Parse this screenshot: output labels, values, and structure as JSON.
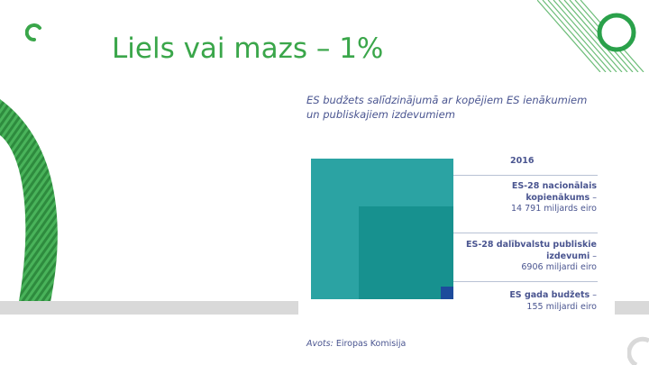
{
  "slide": {
    "title": "Liels vai mazs – 1%"
  },
  "figure": {
    "heading_line1": "ES budžets salīdzinājumā ar kopējiem ES ienākumiem",
    "heading_line2": "un publiskajiem izdevumiem",
    "year": "2016",
    "items": [
      {
        "name_line1": "ES-28 nacionālais",
        "name_line2": "kopienākums",
        "dash": " –",
        "amount": "14 791 miljards eiro",
        "value_billion_eur": 14791
      },
      {
        "name_line1": "ES-28 dalībvalstu publiskie",
        "name_line2": "izdevumi",
        "dash": " –",
        "amount": "6906 miljardi eiro",
        "value_billion_eur": 6906
      },
      {
        "name_line1": "ES gada budžets",
        "name_line2": "",
        "dash": " –",
        "amount": "155 miljardi eiro",
        "value_billion_eur": 155
      }
    ],
    "source_label": "Avots:",
    "source_value": " Eiropas Komisija"
  },
  "colors": {
    "title_green": "#3aa64a",
    "square_large": "#2ba3a3",
    "square_medium": "#17918f",
    "square_small": "#1d4b9c",
    "text_navy": "#4a5590"
  }
}
